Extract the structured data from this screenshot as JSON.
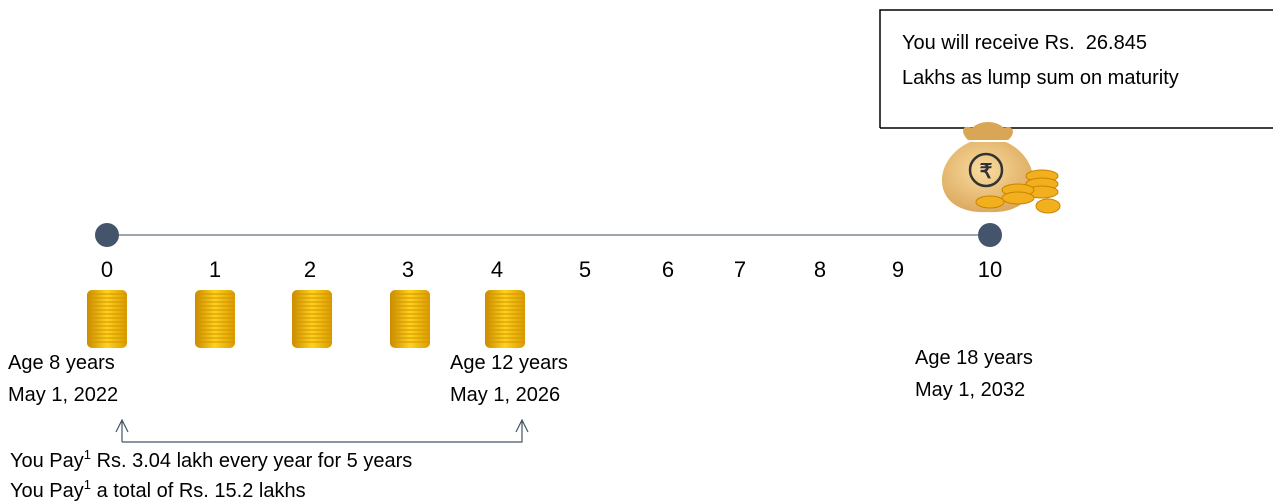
{
  "callout": {
    "lines": [
      "You will receive Rs.  26.845",
      "Lakhs as lump sum on maturity"
    ]
  },
  "timeline": {
    "labels": [
      "0",
      "1",
      "2",
      "3",
      "4",
      "5",
      "6",
      "7",
      "8",
      "9",
      "10"
    ]
  },
  "milestones": [
    {
      "age": "Age 8 years",
      "date": "May 1, 2022"
    },
    {
      "age": "Age 12 years",
      "date": "May 1, 2026"
    },
    {
      "age": "Age 18 years",
      "date": "May 1, 2032"
    }
  ],
  "payments": [
    {
      "prefix": "You Pay",
      "sup": "1",
      "text": " Rs. 3.04 lakh every year for 5 years"
    },
    {
      "prefix": "You Pay",
      "sup": "1",
      "text": " a total of Rs. 15.2 lakhs"
    }
  ]
}
